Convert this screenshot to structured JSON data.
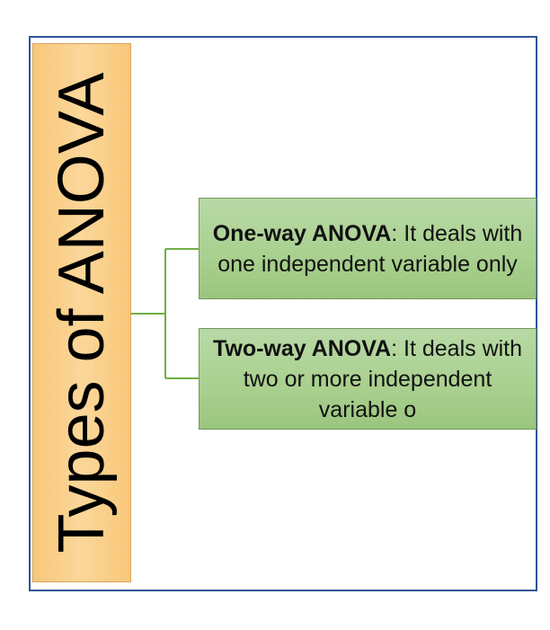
{
  "root": {
    "label": "Types of ANOVA"
  },
  "children": [
    {
      "term": "One-way ANOVA",
      "definition": ": It deals with one independent variable only"
    },
    {
      "term": "Two-way ANOVA",
      "definition": ": It deals with two or more independent  variable o"
    }
  ],
  "colors": {
    "frame_border": "#2f5597",
    "root_fill": "#fbd79a",
    "child_fill": "#a9d08e",
    "connector": "#70ad47"
  }
}
